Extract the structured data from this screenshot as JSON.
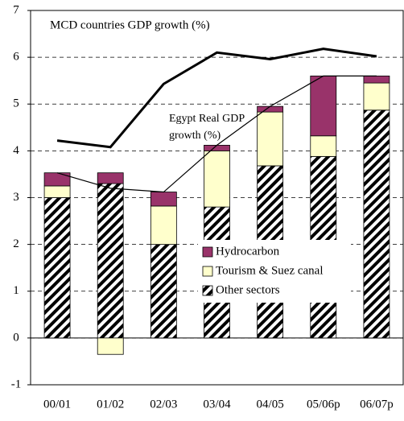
{
  "chart_data": {
    "type": "bar",
    "title": "MCD countries GDP growth (%)",
    "annotation": [
      "Egypt Real GDP",
      "growth (%)"
    ],
    "categories": [
      "00/01",
      "01/02",
      "02/03",
      "03/04",
      "04/05",
      "05/06p",
      "06/07p"
    ],
    "series": [
      {
        "name": "Other sectors",
        "color": "#000000",
        "hatch": true,
        "values": [
          3.0,
          3.3,
          2.0,
          2.8,
          3.68,
          3.88,
          4.87
        ]
      },
      {
        "name": "Tourism & Suez canal",
        "color": "#ffffcc",
        "values": [
          0.25,
          -0.35,
          0.82,
          1.2,
          1.15,
          0.44,
          0.58
        ]
      },
      {
        "name": "Hydrocarbon",
        "color": "#99336a",
        "values": [
          0.28,
          0.23,
          0.3,
          0.12,
          0.12,
          1.28,
          0.15
        ]
      }
    ],
    "lines": [
      {
        "width": 3,
        "values": [
          4.22,
          4.08,
          5.43,
          6.1,
          5.96,
          6.18,
          6.02
        ]
      },
      {
        "width": 1.2,
        "values": [
          3.53,
          3.2,
          3.12,
          4.12,
          4.95,
          5.6,
          5.6
        ]
      }
    ],
    "ylim": [
      -1,
      7
    ],
    "yticks": [
      -1,
      0,
      1,
      2,
      3,
      4,
      5,
      6,
      7
    ],
    "grid": true
  }
}
